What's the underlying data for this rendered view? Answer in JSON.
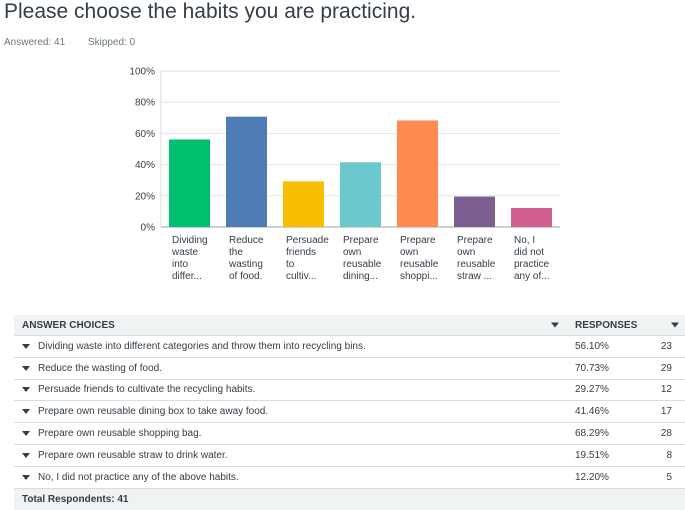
{
  "question": {
    "title": "Please choose the habits you are practicing.",
    "answered": "Answered: 41",
    "skipped": "Skipped: 0"
  },
  "chart_data": {
    "type": "bar",
    "ylim": [
      0,
      100
    ],
    "yticks": [
      "0%",
      "20%",
      "40%",
      "60%",
      "80%",
      "100%"
    ],
    "categories": [
      [
        "Dividing",
        "waste",
        "into",
        "differ..."
      ],
      [
        "Reduce",
        "the",
        "wasting",
        "of food."
      ],
      [
        "Persuade",
        "friends",
        "to",
        "cultiv..."
      ],
      [
        "Prepare",
        "own",
        "reusable",
        "dining..."
      ],
      [
        "Prepare",
        "own",
        "reusable",
        "shoppi..."
      ],
      [
        "Prepare",
        "own",
        "reusable",
        "straw ..."
      ],
      [
        "No, I",
        "did not",
        "practice",
        "any of..."
      ]
    ],
    "values": [
      56.1,
      70.73,
      29.27,
      41.46,
      68.29,
      19.51,
      12.2
    ],
    "colors": [
      "#00bf6f",
      "#507cb6",
      "#f9be00",
      "#6bc8cd",
      "#ff8b4f",
      "#7d5e90",
      "#d25f90"
    ],
    "grid": true
  },
  "table": {
    "header_choices": "ANSWER CHOICES",
    "header_responses": "RESPONSES",
    "rows": [
      {
        "label": "Dividing waste into different categories and throw them into recycling bins.",
        "pct": "56.10%",
        "count": "23"
      },
      {
        "label": "Reduce the wasting of food.",
        "pct": "70.73%",
        "count": "29"
      },
      {
        "label": "Persuade friends to cultivate the recycling habits.",
        "pct": "29.27%",
        "count": "12"
      },
      {
        "label": "Prepare own reusable dining box to take away food.",
        "pct": "41.46%",
        "count": "17"
      },
      {
        "label": "Prepare own reusable shopping bag.",
        "pct": "68.29%",
        "count": "28"
      },
      {
        "label": "Prepare own reusable straw to drink water.",
        "pct": "19.51%",
        "count": "8"
      },
      {
        "label": "No, I did not practice any of the above habits.",
        "pct": "12.20%",
        "count": "5"
      }
    ],
    "total": "Total Respondents: 41"
  }
}
